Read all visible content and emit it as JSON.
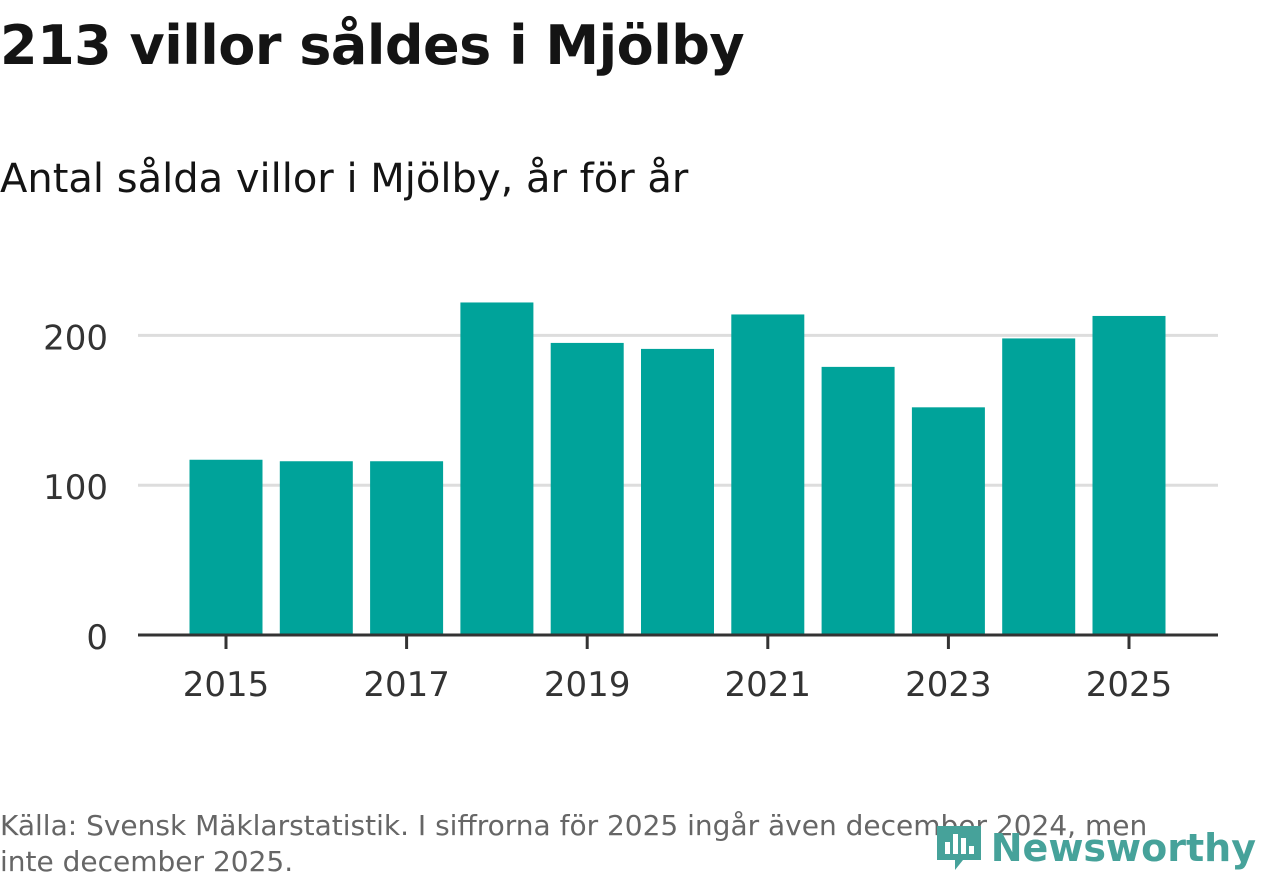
{
  "title": "213 villor såldes i Mjölby",
  "subtitle": "Antal sålda villor i Mjölby, år för år",
  "source": "Källa: Svensk Mäklarstatistik. I siffrorna för 2025 ingår även december 2024, men inte december 2025.",
  "brand": {
    "name": "Newsworthy",
    "icon": "newsworthy-logo-icon",
    "color": "#46a29a"
  },
  "colors": {
    "bar": "#00a39a",
    "grid": "#dddddd",
    "axis": "#333333",
    "tick_text": "#333333"
  },
  "chart_data": {
    "type": "bar",
    "title": "Antal sålda villor i Mjölby, år för år",
    "xlabel": "",
    "ylabel": "",
    "categories": [
      "2015",
      "2016",
      "2017",
      "2018",
      "2019",
      "2020",
      "2021",
      "2022",
      "2023",
      "2024",
      "2025"
    ],
    "values": [
      117,
      116,
      116,
      222,
      195,
      191,
      214,
      179,
      152,
      198,
      213
    ],
    "ylim": [
      0,
      235
    ],
    "yticks": [
      "0",
      "100",
      "200"
    ],
    "xticks": [
      "2015",
      "2017",
      "2019",
      "2021",
      "2023",
      "2025"
    ],
    "grid": true,
    "legend": "none"
  }
}
